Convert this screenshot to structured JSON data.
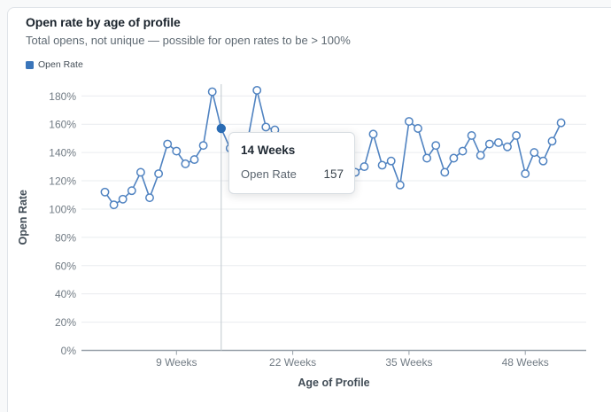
{
  "card": {
    "title": "Open rate by age of profile",
    "subtitle": "Total opens, not unique — possible for open rates to be > 100%"
  },
  "legend": {
    "label": "Open Rate",
    "color": "#3a75ba"
  },
  "tooltip": {
    "title": "14 Weeks",
    "series_label": "Open Rate",
    "value": "157"
  },
  "chart_data": {
    "type": "line",
    "title": "Open rate by age of profile",
    "xlabel": "Age of Profile",
    "ylabel": "Open Rate",
    "x_unit": "Weeks",
    "x_start_week": 1,
    "x": [
      1,
      2,
      3,
      4,
      5,
      6,
      7,
      8,
      9,
      10,
      11,
      12,
      13,
      14,
      15,
      16,
      17,
      18,
      19,
      20,
      21,
      22,
      23,
      24,
      25,
      26,
      27,
      28,
      29,
      30,
      31,
      32,
      33,
      34,
      35,
      36,
      37,
      38,
      39,
      40,
      41,
      42,
      43,
      44,
      45,
      46,
      47,
      48,
      49,
      50,
      51,
      52
    ],
    "series": [
      {
        "name": "Open Rate",
        "values": [
          112,
          103,
          107,
          113,
          126,
          108,
          125,
          146,
          141,
          132,
          135,
          145,
          183,
          157,
          143,
          135,
          150,
          184,
          158,
          156,
          140,
          128,
          134,
          122,
          132,
          126,
          135,
          130,
          126,
          130,
          153,
          131,
          134,
          117,
          162,
          157,
          136,
          145,
          126,
          136,
          141,
          152,
          138,
          146,
          147,
          144,
          152,
          125,
          140,
          134,
          148,
          161
        ]
      }
    ],
    "hover_point": {
      "week": 14,
      "value": 157
    },
    "ylim": [
      0,
      190
    ],
    "ytick_labels": [
      "0%",
      "20%",
      "40%",
      "60%",
      "80%",
      "100%",
      "120%",
      "140%",
      "160%",
      "180%"
    ],
    "ytick_values": [
      0,
      20,
      40,
      60,
      80,
      100,
      120,
      140,
      160,
      180
    ],
    "xticks": [
      {
        "week": 9,
        "label": "9 Weeks"
      },
      {
        "week": 22,
        "label": "22 Weeks"
      },
      {
        "week": 35,
        "label": "35 Weeks"
      },
      {
        "week": 48,
        "label": "48 Weeks"
      }
    ],
    "grid": true,
    "legend_position": "top-left",
    "colors": {
      "line": "#5083c1",
      "marker_fill": "#ffffff",
      "hover_dot": "#2a6cb4",
      "gridline": "#e9ecef",
      "axis_line": "#98a1a9",
      "tick_label": "#717b84",
      "axis_title": "#414c56",
      "crosshair": "#c9d0d6"
    }
  }
}
